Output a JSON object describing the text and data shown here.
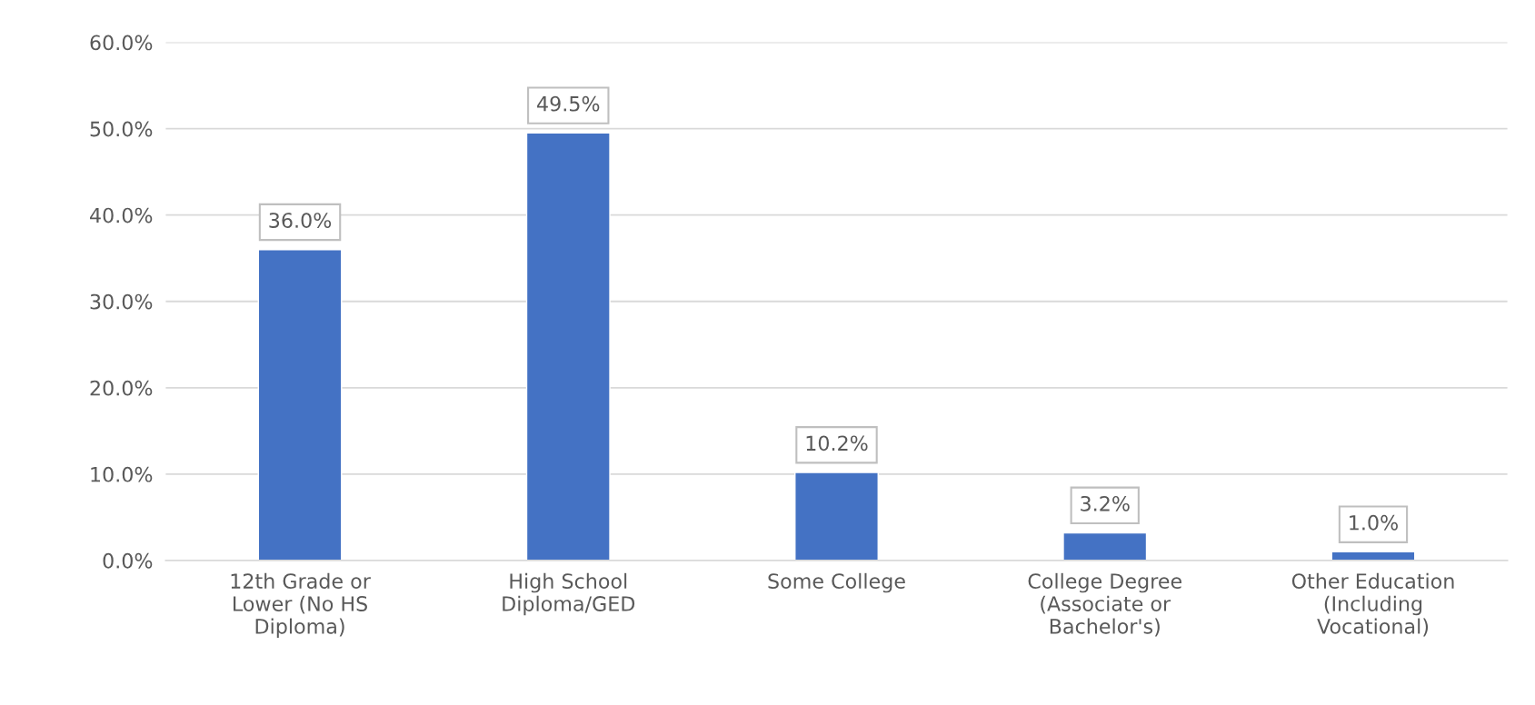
{
  "chart_data": {
    "type": "bar",
    "categories": [
      "12th Grade or\nLower (No HS\nDiploma)",
      "High School\nDiploma/GED",
      "Some College",
      "College Degree\n(Associate or\nBachelor's)",
      "Other Education\n(Including\nVocational)"
    ],
    "values": [
      36.0,
      49.5,
      10.2,
      3.2,
      1.0
    ],
    "value_labels": [
      "36.0%",
      "49.5%",
      "10.2%",
      "3.2%",
      "1.0%"
    ],
    "color": "#4472c4",
    "ylim": [
      0,
      60
    ],
    "yticks": [
      {
        "value": 0,
        "label": "0.0%"
      },
      {
        "value": 10,
        "label": "10.0%"
      },
      {
        "value": 20,
        "label": "20.0%"
      },
      {
        "value": 30,
        "label": "30.0%"
      },
      {
        "value": 40,
        "label": "40.0%"
      },
      {
        "value": 50,
        "label": "50.0%"
      },
      {
        "value": 60,
        "label": "60.0%"
      }
    ],
    "grid": "y",
    "legend": false
  }
}
